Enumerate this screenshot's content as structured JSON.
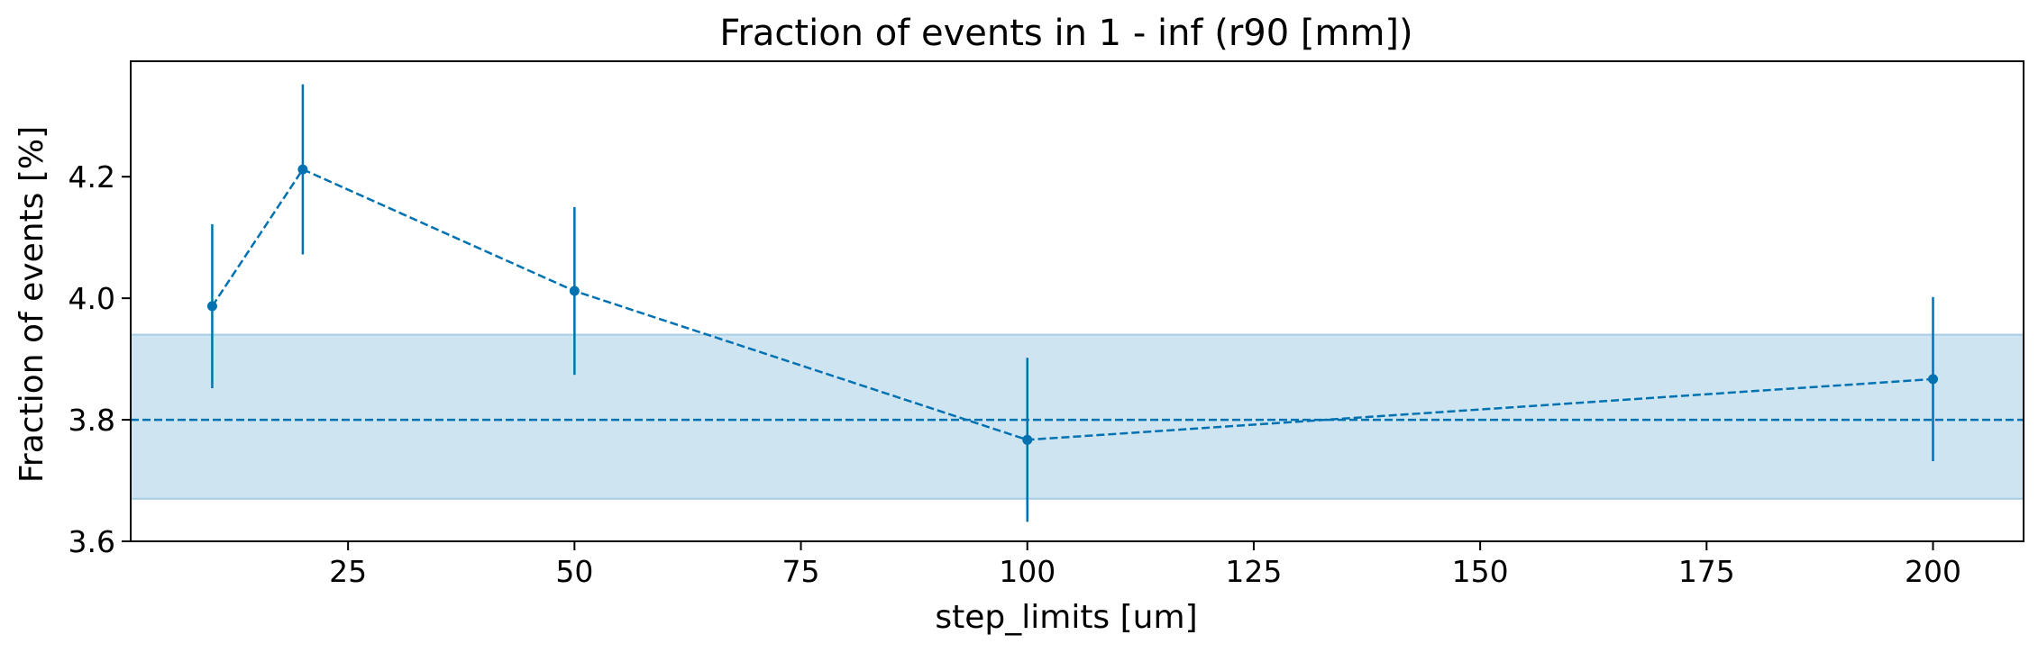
{
  "chart_data": {
    "type": "line",
    "title": "Fraction of events in 1 - inf (r90 [mm])",
    "xlabel": "step_limits [um]",
    "ylabel": "Fraction of events [%]",
    "xlim": [
      1,
      210
    ],
    "ylim": [
      3.6,
      4.39
    ],
    "xticks": [
      25,
      50,
      75,
      100,
      125,
      150,
      175,
      200
    ],
    "yticks": [
      3.6,
      3.8,
      4.0,
      4.2
    ],
    "xtick_labels": [
      "25",
      "50",
      "75",
      "100",
      "125",
      "150",
      "175",
      "200"
    ],
    "ytick_labels": [
      "3.6",
      "3.8",
      "4.0",
      "4.2"
    ],
    "grid": false,
    "series": [
      {
        "x": [
          10,
          20,
          50,
          100,
          200
        ],
        "y": [
          3.987,
          4.212,
          4.012,
          3.767,
          3.867
        ],
        "yerr": [
          0.135,
          0.14,
          0.138,
          0.135,
          0.135
        ],
        "color": "#0072b2",
        "linestyle": "dashed",
        "marker": "circle"
      }
    ],
    "reference_line": {
      "y": 3.8,
      "color": "#0072b2",
      "linestyle": "dashed"
    },
    "band": {
      "y_low": 3.67,
      "y_high": 3.94,
      "color": "#a6cde6"
    }
  }
}
